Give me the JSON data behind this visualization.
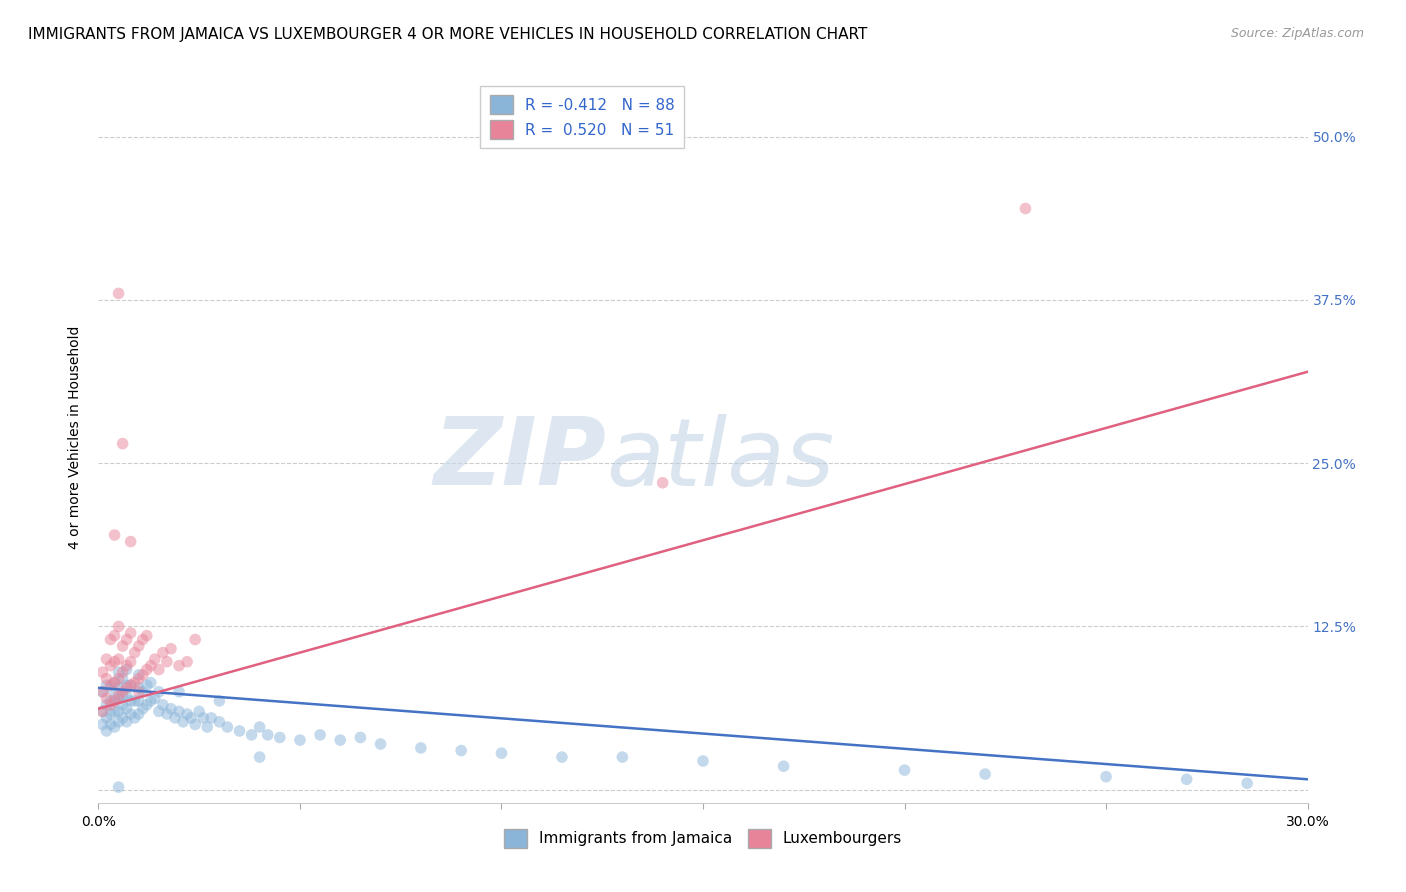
{
  "title": "IMMIGRANTS FROM JAMAICA VS LUXEMBOURGER 4 OR MORE VEHICLES IN HOUSEHOLD CORRELATION CHART",
  "source_text": "Source: ZipAtlas.com",
  "ylabel": "4 or more Vehicles in Household",
  "xlim": [
    0.0,
    0.3
  ],
  "ylim": [
    -0.01,
    0.55
  ],
  "xticks": [
    0.0,
    0.05,
    0.1,
    0.15,
    0.2,
    0.25,
    0.3
  ],
  "yticks": [
    0.0,
    0.125,
    0.25,
    0.375,
    0.5
  ],
  "ytick_labels": [
    "",
    "12.5%",
    "25.0%",
    "37.5%",
    "50.0%"
  ],
  "xtick_labels": [
    "0.0%",
    "",
    "",
    "",
    "",
    "",
    "30.0%"
  ],
  "blue_scatter_x": [
    0.001,
    0.001,
    0.001,
    0.002,
    0.002,
    0.002,
    0.002,
    0.003,
    0.003,
    0.003,
    0.003,
    0.004,
    0.004,
    0.004,
    0.004,
    0.005,
    0.005,
    0.005,
    0.005,
    0.005,
    0.006,
    0.006,
    0.006,
    0.006,
    0.007,
    0.007,
    0.007,
    0.007,
    0.007,
    0.008,
    0.008,
    0.008,
    0.009,
    0.009,
    0.01,
    0.01,
    0.01,
    0.01,
    0.011,
    0.011,
    0.012,
    0.012,
    0.013,
    0.013,
    0.014,
    0.015,
    0.015,
    0.016,
    0.017,
    0.018,
    0.019,
    0.02,
    0.021,
    0.022,
    0.023,
    0.024,
    0.025,
    0.026,
    0.027,
    0.028,
    0.03,
    0.032,
    0.035,
    0.038,
    0.04,
    0.042,
    0.045,
    0.05,
    0.055,
    0.06,
    0.065,
    0.07,
    0.08,
    0.09,
    0.1,
    0.115,
    0.13,
    0.15,
    0.17,
    0.2,
    0.22,
    0.25,
    0.27,
    0.285,
    0.02,
    0.03,
    0.04,
    0.005
  ],
  "blue_scatter_y": [
    0.05,
    0.06,
    0.075,
    0.045,
    0.055,
    0.065,
    0.08,
    0.05,
    0.058,
    0.068,
    0.078,
    0.048,
    0.06,
    0.07,
    0.082,
    0.052,
    0.06,
    0.07,
    0.078,
    0.09,
    0.055,
    0.065,
    0.072,
    0.085,
    0.052,
    0.062,
    0.072,
    0.08,
    0.092,
    0.058,
    0.068,
    0.08,
    0.055,
    0.068,
    0.058,
    0.068,
    0.078,
    0.088,
    0.062,
    0.075,
    0.065,
    0.08,
    0.068,
    0.082,
    0.07,
    0.06,
    0.075,
    0.065,
    0.058,
    0.062,
    0.055,
    0.06,
    0.052,
    0.058,
    0.055,
    0.05,
    0.06,
    0.055,
    0.048,
    0.055,
    0.052,
    0.048,
    0.045,
    0.042,
    0.048,
    0.042,
    0.04,
    0.038,
    0.042,
    0.038,
    0.04,
    0.035,
    0.032,
    0.03,
    0.028,
    0.025,
    0.025,
    0.022,
    0.018,
    0.015,
    0.012,
    0.01,
    0.008,
    0.005,
    0.075,
    0.068,
    0.025,
    0.002
  ],
  "pink_scatter_x": [
    0.001,
    0.001,
    0.001,
    0.002,
    0.002,
    0.002,
    0.003,
    0.003,
    0.003,
    0.003,
    0.004,
    0.004,
    0.004,
    0.004,
    0.005,
    0.005,
    0.005,
    0.005,
    0.006,
    0.006,
    0.006,
    0.007,
    0.007,
    0.007,
    0.008,
    0.008,
    0.008,
    0.009,
    0.009,
    0.01,
    0.01,
    0.011,
    0.011,
    0.012,
    0.012,
    0.013,
    0.014,
    0.015,
    0.016,
    0.017,
    0.018,
    0.02,
    0.022,
    0.024,
    0.004,
    0.005,
    0.006,
    0.008,
    0.01,
    0.14,
    0.23
  ],
  "pink_scatter_y": [
    0.06,
    0.075,
    0.09,
    0.07,
    0.085,
    0.1,
    0.065,
    0.08,
    0.095,
    0.115,
    0.068,
    0.082,
    0.098,
    0.118,
    0.072,
    0.085,
    0.1,
    0.125,
    0.075,
    0.09,
    0.11,
    0.078,
    0.095,
    0.115,
    0.08,
    0.098,
    0.12,
    0.082,
    0.105,
    0.085,
    0.11,
    0.088,
    0.115,
    0.092,
    0.118,
    0.095,
    0.1,
    0.092,
    0.105,
    0.098,
    0.108,
    0.095,
    0.098,
    0.115,
    0.195,
    0.38,
    0.265,
    0.19,
    0.075,
    0.235,
    0.445
  ],
  "blue_line_x": [
    0.0,
    0.3
  ],
  "blue_line_y": [
    0.078,
    0.008
  ],
  "pink_line_x": [
    0.0,
    0.3
  ],
  "pink_line_y": [
    0.062,
    0.32
  ],
  "blue_color": "#8ab4d8",
  "pink_color": "#e8849a",
  "blue_line_color": "#4472c4",
  "pink_line_color": "#e06080",
  "scatter_alpha": 0.5,
  "scatter_size": 70,
  "watermark_zip": "ZIP",
  "watermark_atlas": "atlas",
  "background_color": "#ffffff",
  "grid_color": "#cccccc",
  "right_tick_color": "#4472c4",
  "legend_label_blue": "R = -0.412   N = 88",
  "legend_label_pink": "R =  0.520   N = 51",
  "bottom_label_blue": "Immigrants from Jamaica",
  "bottom_label_pink": "Luxembourgers",
  "title_fontsize": 11,
  "label_fontsize": 10
}
